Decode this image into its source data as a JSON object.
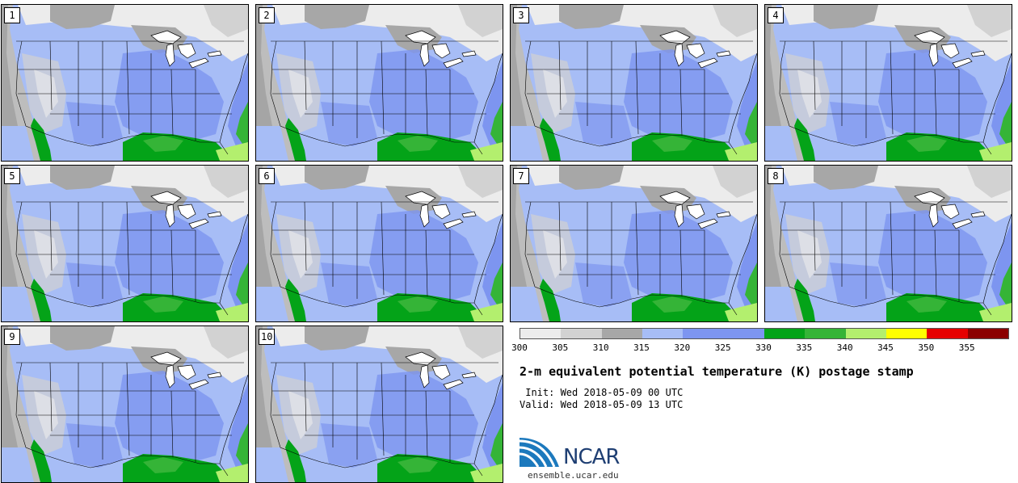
{
  "panels": [
    "1",
    "2",
    "3",
    "4",
    "5",
    "6",
    "7",
    "8",
    "9",
    "10"
  ],
  "colorbar": {
    "colors": [
      "#ececec",
      "#d2d2d2",
      "#a7a7a7",
      "#a7bdf6",
      "#7d95f0",
      "#7d95f0",
      "#04a318",
      "#35b437",
      "#b3ef6e",
      "#ffff00",
      "#e60000",
      "#8b0000"
    ],
    "ticks": [
      "300",
      "305",
      "310",
      "315",
      "320",
      "325",
      "330",
      "335",
      "340",
      "345",
      "350",
      "355"
    ]
  },
  "title": "2-m equivalent potential temperature (K) postage stamp",
  "init": " Init: Wed 2018-05-09 00 UTC",
  "valid": "Valid: Wed 2018-05-09 13 UTC",
  "logo": {
    "name": "NCAR",
    "url": "ensemble.ucar.edu"
  }
}
